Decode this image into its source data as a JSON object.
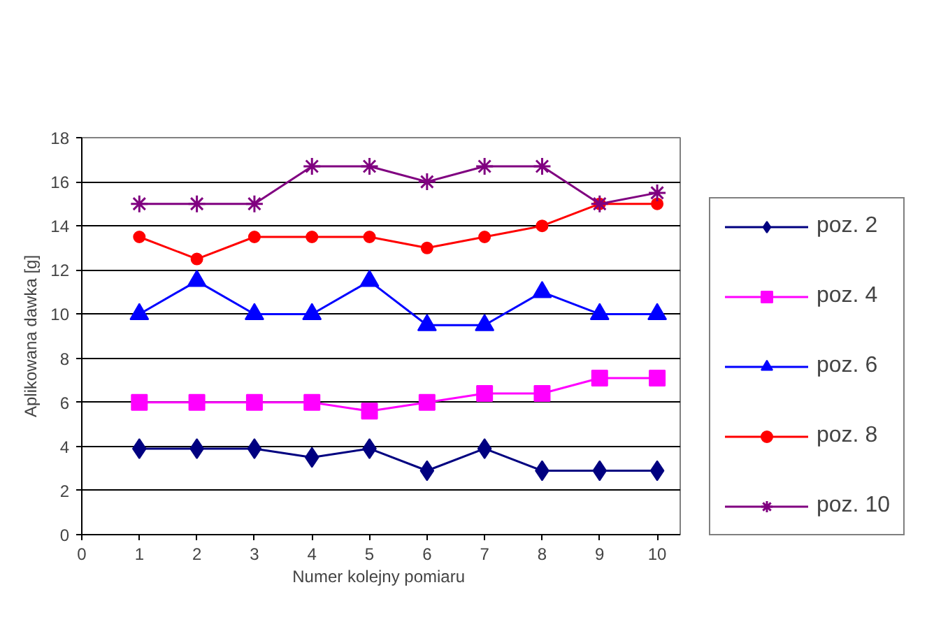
{
  "chart_data": {
    "type": "line",
    "xlabel": "Numer kolejny  pomiaru",
    "ylabel": "Aplikowana dawka [g]",
    "x": [
      1,
      2,
      3,
      4,
      5,
      6,
      7,
      8,
      9,
      10
    ],
    "xlim": [
      0,
      10.4
    ],
    "xticks": [
      0,
      1,
      2,
      3,
      4,
      5,
      6,
      7,
      8,
      9,
      10
    ],
    "ylim": [
      0,
      18
    ],
    "yticks": [
      0,
      2,
      4,
      6,
      8,
      10,
      12,
      14,
      16,
      18
    ],
    "grid": "y",
    "legend": "right",
    "series": [
      {
        "name": "poz. 2",
        "color": "#000080",
        "marker": "diamond",
        "values": [
          3.9,
          3.9,
          3.9,
          3.5,
          3.9,
          2.9,
          3.9,
          2.9,
          2.9,
          2.9
        ]
      },
      {
        "name": "poz. 4",
        "color": "#ff00ff",
        "marker": "square",
        "values": [
          6,
          6,
          6,
          6,
          5.6,
          6,
          6.4,
          6.4,
          7.1,
          7.1
        ]
      },
      {
        "name": "poz. 6",
        "color": "#0000ff",
        "marker": "triangle",
        "values": [
          10,
          11.5,
          10,
          10,
          11.5,
          9.5,
          9.5,
          11,
          10,
          10
        ]
      },
      {
        "name": "poz. 8",
        "color": "#ff0000",
        "marker": "circle",
        "values": [
          13.5,
          12.5,
          13.5,
          13.5,
          13.5,
          13,
          13.5,
          14,
          15,
          15
        ]
      },
      {
        "name": "poz. 10",
        "color": "#800080",
        "marker": "cross",
        "values": [
          15,
          15,
          15,
          16.7,
          16.7,
          16,
          16.7,
          16.7,
          15,
          15.5
        ]
      }
    ]
  }
}
